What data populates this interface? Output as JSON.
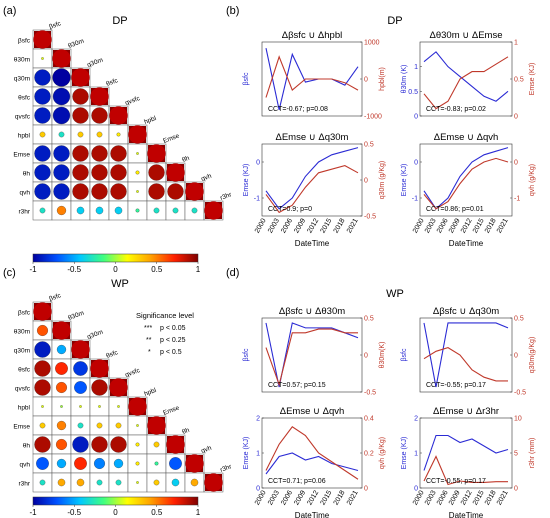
{
  "panels": {
    "a": {
      "letter": "(a)",
      "title": "DP"
    },
    "b": {
      "letter": "(b)",
      "title": "DP"
    },
    "c": {
      "letter": "(c)",
      "title": "WP"
    },
    "d": {
      "letter": "(d)",
      "title": "WP"
    }
  },
  "significance": {
    "title": "Significance level",
    "items": [
      {
        "sym": "***",
        "label": "p < 0.05"
      },
      {
        "sym": "**",
        "label": "p < 0.25"
      },
      {
        "sym": "*",
        "label": "p < 0.5"
      }
    ]
  },
  "colorbar": {
    "ticks": [
      "-1",
      "-0.5",
      "0",
      "0.5",
      "1"
    ],
    "stops": [
      "#0000a0",
      "#0050ff",
      "#00c8ff",
      "#40ff80",
      "#ffff00",
      "#ffa000",
      "#ff2000",
      "#800000"
    ]
  },
  "chart_data": [
    {
      "type": "heatmap",
      "panel": "a",
      "variables": [
        "βsfc",
        "θ30m",
        "q30m",
        "θsfc",
        "qvsfc",
        "hpbl",
        "Emse",
        "θh",
        "qvh",
        "r3hr"
      ],
      "lower_triangle": [
        [
          1
        ],
        [
          0.1,
          1
        ],
        [
          -0.9,
          -1,
          1
        ],
        [
          -0.9,
          -0.95,
          0.9,
          1
        ],
        [
          -0.9,
          -0.95,
          0.9,
          0.9,
          1
        ],
        [
          0.3,
          -0.3,
          0.3,
          0.3,
          0.2,
          1
        ],
        [
          -0.9,
          -0.9,
          0.9,
          0.9,
          0.9,
          0.1,
          1
        ],
        [
          -0.9,
          -0.9,
          0.9,
          0.9,
          0.9,
          0.2,
          0.9,
          1
        ],
        [
          -0.9,
          -0.9,
          0.9,
          0.9,
          0.9,
          0.1,
          0.9,
          0.9,
          1
        ],
        [
          -0.3,
          0.5,
          -0.4,
          -0.4,
          -0.4,
          -0.2,
          -0.3,
          -0.3,
          -0.3,
          1
        ]
      ]
    },
    {
      "type": "line",
      "panel": "b",
      "title": "Δβsfc ∪ Δhpbl",
      "x": [
        "2000",
        "2003",
        "2006",
        "2009",
        "2012",
        "2015",
        "2018",
        "2021"
      ],
      "xlabel": "",
      "ylabel_left": "βsfc",
      "ylabel_right": "hpbl(m)",
      "y_left_ticks": [],
      "y_right_ticks": [
        "-1000",
        "0",
        "1000"
      ],
      "y_right_range": [
        -1000,
        1000
      ],
      "series": [
        {
          "axis": "left",
          "values": [
            0.6,
            -0.4,
            0.5,
            0.05,
            0.1,
            0.1,
            0.0,
            0.3
          ]
        },
        {
          "axis": "right",
          "values": [
            -500,
            600,
            -300,
            0,
            0,
            0,
            -100,
            -300
          ]
        }
      ],
      "annotation": "CCT=-0.67; p=0.08"
    },
    {
      "type": "line",
      "panel": "b",
      "title": "Δθ30m ∪ ΔEmse",
      "x": [
        "2000",
        "2003",
        "2006",
        "2009",
        "2012",
        "2015",
        "2018",
        "2021"
      ],
      "xlabel": "",
      "ylabel_left": "θ30m (K)",
      "ylabel_right": "Emse (KJ)",
      "y_left_ticks": [
        "0",
        "0.5",
        "1"
      ],
      "y_right_ticks": [
        "0",
        "0.5",
        "1"
      ],
      "y_left_range": [
        0,
        1.5
      ],
      "y_right_range": [
        0,
        1
      ],
      "series": [
        {
          "axis": "left",
          "values": [
            1.1,
            1.3,
            1.0,
            0.8,
            0.6,
            0.4,
            0.3,
            0.5
          ]
        },
        {
          "axis": "right",
          "values": [
            0.3,
            0.1,
            0.2,
            0.5,
            0.6,
            0.6,
            0.7,
            0.8
          ]
        }
      ],
      "annotation": "CCT=-0.83; p=0.02"
    },
    {
      "type": "line",
      "panel": "b",
      "title": "ΔEmse ∪ Δq30m",
      "x": [
        "2000",
        "2003",
        "2006",
        "2009",
        "2012",
        "2015",
        "2018",
        "2021"
      ],
      "xlabel": "DateTime",
      "ylabel_left": "Emse (KJ)",
      "ylabel_right": "q30m (g/Kg)",
      "y_left_ticks": [
        "-1",
        "0"
      ],
      "y_right_ticks": [
        "-0.5",
        "0",
        "0.5"
      ],
      "y_left_range": [
        -1.5,
        0.5
      ],
      "y_right_range": [
        -0.5,
        0.5
      ],
      "series": [
        {
          "axis": "left",
          "values": [
            -0.8,
            -1.3,
            -1.0,
            -0.4,
            0.0,
            0.2,
            0.3,
            0.4
          ]
        },
        {
          "axis": "right",
          "values": [
            -0.2,
            -0.45,
            -0.35,
            -0.1,
            0.1,
            0.15,
            0.2,
            0.1
          ]
        }
      ],
      "annotation": "CCT=0.9; p=0"
    },
    {
      "type": "line",
      "panel": "b",
      "title": "ΔEmse ∪ Δqvh",
      "x": [
        "2000",
        "2003",
        "2006",
        "2009",
        "2012",
        "2015",
        "2018",
        "2021"
      ],
      "xlabel": "DateTime",
      "ylabel_left": "Emse (KJ)",
      "ylabel_right": "qvh (g/Kg)",
      "y_left_ticks": [
        "-1",
        "0"
      ],
      "y_right_ticks": [
        "-1",
        "0"
      ],
      "y_left_range": [
        -1.5,
        0.5
      ],
      "y_right_range": [
        -1.5,
        0.5
      ],
      "series": [
        {
          "axis": "left",
          "values": [
            -0.8,
            -1.3,
            -1.0,
            -0.4,
            0.0,
            0.2,
            0.3,
            0.4
          ]
        },
        {
          "axis": "right",
          "values": [
            -0.9,
            -1.3,
            -1.1,
            -0.6,
            -0.2,
            0.0,
            0.1,
            0.0
          ]
        }
      ],
      "annotation": "CCT=0.86; p=0.01"
    },
    {
      "type": "heatmap",
      "panel": "c",
      "variables": [
        "βsfc",
        "θ30m",
        "q30m",
        "θsfc",
        "qvsfc",
        "hpbl",
        "Emse",
        "θh",
        "qvh",
        "r3hr"
      ],
      "lower_triangle": [
        [
          1
        ],
        [
          0.6,
          1
        ],
        [
          -0.9,
          -0.5,
          1
        ],
        [
          0.9,
          0.7,
          -0.8,
          1
        ],
        [
          0.9,
          0.6,
          -0.7,
          0.9,
          1
        ],
        [
          0.1,
          0.0,
          0.1,
          0.1,
          0.1,
          1
        ],
        [
          0.3,
          0.5,
          -0.3,
          0.3,
          0.3,
          0.1,
          1
        ],
        [
          0.9,
          0.6,
          -0.9,
          0.9,
          0.9,
          0.2,
          0.3,
          1
        ],
        [
          -0.7,
          -0.5,
          0.7,
          -0.6,
          -0.5,
          0.2,
          -0.2,
          -0.7,
          1
        ],
        [
          -0.3,
          0.4,
          0.4,
          -0.3,
          -0.3,
          0.1,
          0.3,
          -0.4,
          0.4,
          1
        ]
      ]
    },
    {
      "type": "line",
      "panel": "d",
      "title": "Δβsfc ∪ Δθ30m",
      "x": [
        "2000",
        "2003",
        "2006",
        "2009",
        "2012",
        "2015",
        "2018",
        "2021"
      ],
      "xlabel": "",
      "ylabel_left": "βsfc",
      "ylabel_right": "θ30m(K)",
      "y_left_ticks": [],
      "y_right_ticks": [
        "-0.5",
        "0",
        "0.5"
      ],
      "y_right_range": [
        -0.5,
        0.5
      ],
      "series": [
        {
          "axis": "left",
          "values": [
            0.5,
            -0.8,
            0.5,
            0.4,
            0.4,
            0.4,
            0.3,
            0.2
          ]
        },
        {
          "axis": "right",
          "values": [
            0.1,
            -0.4,
            0.3,
            0.3,
            0.35,
            0.35,
            0.3,
            0.3
          ]
        }
      ],
      "annotation": "CCT=0.57; p=0.15"
    },
    {
      "type": "line",
      "panel": "d",
      "title": "Δβsfc ∪ Δq30m",
      "x": [
        "2000",
        "2003",
        "2006",
        "2009",
        "2012",
        "2015",
        "2018",
        "2021"
      ],
      "xlabel": "",
      "ylabel_left": "βsfc",
      "ylabel_right": "q30m(g/Kg)",
      "y_left_ticks": [],
      "y_right_ticks": [
        "-0.5",
        "0",
        "0.5"
      ],
      "y_right_range": [
        -0.5,
        0.5
      ],
      "series": [
        {
          "axis": "left",
          "values": [
            0.4,
            -0.9,
            0.4,
            0.4,
            0.4,
            0.4,
            0.4,
            0.3
          ]
        },
        {
          "axis": "right",
          "values": [
            -0.05,
            0.05,
            0.1,
            0.0,
            -0.2,
            -0.3,
            -0.35,
            -0.35
          ]
        }
      ],
      "annotation": "CCT=-0.55; p=0.17"
    },
    {
      "type": "line",
      "panel": "d",
      "title": "ΔEmse ∪ Δqvh",
      "x": [
        "2000",
        "2003",
        "2006",
        "2009",
        "2012",
        "2015",
        "2018",
        "2021"
      ],
      "xlabel": "DateTime",
      "ylabel_left": "Emse (KJ)",
      "ylabel_right": "qvh (g/Kg)",
      "y_left_ticks": [
        "0",
        "1",
        "2"
      ],
      "y_right_ticks": [
        "0",
        "0.2",
        "0.4"
      ],
      "y_left_range": [
        0,
        2
      ],
      "y_right_range": [
        0,
        0.4
      ],
      "series": [
        {
          "axis": "left",
          "values": [
            0.4,
            0.9,
            1.0,
            0.8,
            0.9,
            0.7,
            0.6,
            0.5
          ]
        },
        {
          "axis": "right",
          "values": [
            0.1,
            0.25,
            0.35,
            0.3,
            0.2,
            0.15,
            0.1,
            0.05
          ]
        }
      ],
      "annotation": "CCT=0.71; p=0.06"
    },
    {
      "type": "line",
      "panel": "d",
      "title": "ΔEmse ∪ Δr3hr",
      "x": [
        "2000",
        "2003",
        "2006",
        "2009",
        "2012",
        "2015",
        "2018",
        "2021"
      ],
      "xlabel": "DateTime",
      "ylabel_left": "Emse (KJ)",
      "ylabel_right": "r3hr (mm)",
      "y_left_ticks": [
        "0",
        "1",
        "2"
      ],
      "y_right_ticks": [
        "0",
        "5",
        "10"
      ],
      "y_left_range": [
        0,
        2
      ],
      "y_right_range": [
        0,
        10
      ],
      "series": [
        {
          "axis": "left",
          "values": [
            0.5,
            1.5,
            1.5,
            1.3,
            1.4,
            1.2,
            1.0,
            1.1
          ]
        },
        {
          "axis": "right",
          "values": [
            1.0,
            4.5,
            0.5,
            1.0,
            0.8,
            0.8,
            0.9,
            0.9
          ]
        }
      ],
      "annotation": "CCT=-0.55; p=0.17"
    }
  ]
}
